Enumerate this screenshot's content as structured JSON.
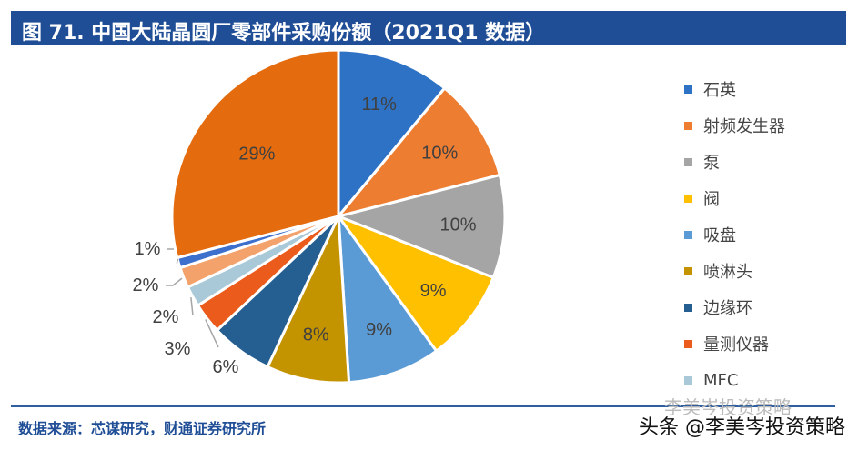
{
  "title": "图 71. 中国大陆晶圆厂零部件采购份额（2021Q1 数据）",
  "source": "数据来源：芯谋研究，财通证券研究所",
  "watermark": "头条 @李美岑投资策略",
  "watermark_faint": "李美岑投资策略",
  "chart_data": {
    "type": "pie",
    "title": "",
    "legend_placement": "right",
    "slices": [
      {
        "label": "石英",
        "value": 11,
        "color": "#2e72c6"
      },
      {
        "label": "射频发生器",
        "value": 10,
        "color": "#ed7d31"
      },
      {
        "label": "泵",
        "value": 10,
        "color": "#a5a5a5"
      },
      {
        "label": "阀",
        "value": 9,
        "color": "#ffc000"
      },
      {
        "label": "吸盘",
        "value": 9,
        "color": "#5b9bd5"
      },
      {
        "label": "喷淋头",
        "value": 8,
        "color": "#c49300"
      },
      {
        "label": "边缘环",
        "value": 6,
        "color": "#255e91"
      },
      {
        "label": "量测仪器",
        "value": 3,
        "color": "#eb5b1c"
      },
      {
        "label": "MFC",
        "value": 2,
        "color": "#a9c8d8"
      },
      {
        "label": "",
        "value": 2,
        "color": "#f4a26c"
      },
      {
        "label": "",
        "value": 1,
        "color": "#3d6fcc"
      },
      {
        "label": "",
        "value": 29,
        "color": "#e46c0e"
      }
    ],
    "data_labels": [
      "11%",
      "10%",
      "10%",
      "9%",
      "9%",
      "8%",
      "6%",
      "3%",
      "2%",
      "2%",
      "1%",
      "29%"
    ]
  }
}
